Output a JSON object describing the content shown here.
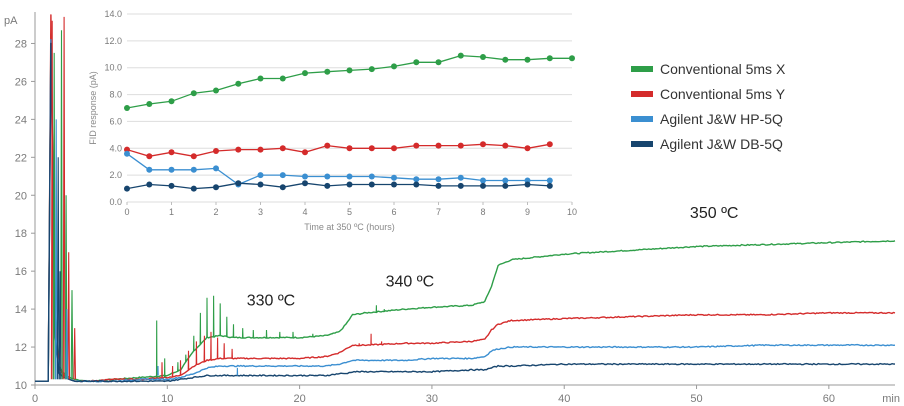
{
  "chart_data": [
    {
      "type": "line",
      "ylabel": "pA",
      "xlabel": "min",
      "xlim": [
        0,
        65
      ],
      "ylim": [
        10,
        29.5
      ],
      "xticks": [
        0,
        10,
        20,
        30,
        40,
        50,
        60
      ],
      "yticks": [
        10,
        12,
        14,
        16,
        18,
        20,
        22,
        24,
        26,
        28
      ],
      "grid": false,
      "legend_position": "top-right",
      "annotations": [
        "330 ºC",
        "340 ºC",
        "350 ºC"
      ],
      "series": [
        {
          "name": "Conventional 5ms X",
          "color": "#2e9e48",
          "x": [
            0,
            1,
            1.2,
            1.5,
            1.8,
            2.2,
            2.6,
            3,
            4,
            6,
            8,
            10,
            11,
            12,
            13,
            14,
            15,
            16,
            18,
            20,
            22,
            23,
            23.5,
            24,
            25,
            28,
            30,
            33,
            34,
            34.5,
            35,
            36,
            40,
            45,
            50,
            55,
            60,
            65
          ],
          "y": [
            10.2,
            10.2,
            28.5,
            14,
            11,
            10.6,
            10.4,
            10.3,
            10.2,
            10.3,
            10.4,
            10.5,
            10.8,
            11.8,
            12.5,
            12.6,
            12.5,
            12.5,
            12.5,
            12.5,
            12.6,
            12.8,
            13.2,
            13.7,
            13.8,
            14,
            14.1,
            14.2,
            14.4,
            15.2,
            16.3,
            16.6,
            16.9,
            17.1,
            17.3,
            17.4,
            17.5,
            17.6
          ]
        },
        {
          "name": "Conventional 5ms Y",
          "color": "#d42b2b",
          "x": [
            0,
            1,
            1.2,
            1.5,
            1.8,
            2.2,
            2.6,
            3,
            4,
            6,
            8,
            10,
            11,
            12,
            13,
            14,
            15,
            16,
            18,
            20,
            22,
            23,
            23.5,
            24,
            25,
            28,
            30,
            33,
            34,
            34.5,
            35,
            36,
            40,
            45,
            50,
            55,
            60,
            65
          ],
          "y": [
            10.2,
            10.2,
            29.5,
            13.5,
            10.9,
            10.5,
            10.3,
            10.2,
            10.2,
            10.3,
            10.3,
            10.4,
            10.5,
            11,
            11.3,
            11.4,
            11.4,
            11.4,
            11.4,
            11.4,
            11.5,
            11.7,
            11.9,
            12.1,
            12.1,
            12.2,
            12.2,
            12.3,
            12.4,
            12.9,
            13.2,
            13.4,
            13.5,
            13.6,
            13.7,
            13.7,
            13.8,
            13.8
          ]
        },
        {
          "name": "Agilent J&W HP-5Q",
          "color": "#3b8fd1",
          "x": [
            0,
            1,
            1.2,
            1.5,
            1.8,
            2.2,
            2.6,
            3,
            4,
            6,
            8,
            10,
            11,
            12,
            13,
            14,
            15,
            16,
            18,
            20,
            22,
            23,
            23.5,
            24,
            25,
            28,
            30,
            33,
            34,
            34.5,
            35,
            36,
            40,
            45,
            50,
            55,
            60,
            65
          ],
          "y": [
            10.2,
            10.2,
            28.2,
            12.8,
            10.7,
            10.4,
            10.3,
            10.2,
            10.2,
            10.2,
            10.3,
            10.3,
            10.4,
            10.6,
            10.9,
            11,
            11,
            11,
            11,
            11,
            11,
            11.1,
            11.2,
            11.3,
            11.3,
            11.3,
            11.4,
            11.4,
            11.5,
            11.8,
            11.9,
            12,
            12,
            12,
            12,
            12.1,
            12.1,
            12.1
          ]
        },
        {
          "name": "Agilent J&W DB-5Q",
          "color": "#17456e",
          "x": [
            0,
            1,
            1.2,
            1.5,
            1.8,
            2.2,
            2.6,
            3,
            4,
            6,
            8,
            10,
            11,
            12,
            13,
            14,
            15,
            16,
            18,
            20,
            22,
            23,
            23.5,
            24,
            25,
            28,
            30,
            33,
            34,
            34.5,
            35,
            36,
            40,
            45,
            50,
            55,
            60,
            65
          ],
          "y": [
            10.2,
            10.2,
            28.0,
            12.5,
            10.6,
            10.4,
            10.3,
            10.2,
            10.2,
            10.2,
            10.2,
            10.2,
            10.3,
            10.4,
            10.5,
            10.5,
            10.5,
            10.5,
            10.5,
            10.5,
            10.5,
            10.6,
            10.6,
            10.7,
            10.7,
            10.7,
            10.7,
            10.8,
            10.8,
            10.9,
            11,
            11,
            11.1,
            11.1,
            11.1,
            11.1,
            11.1,
            11.1
          ]
        }
      ]
    },
    {
      "type": "line",
      "ylabel": "FID response (pA)",
      "xlabel": "Time at 350 ºC (hours)",
      "xlim": [
        0,
        10
      ],
      "ylim": [
        0,
        14
      ],
      "xticks": [
        0,
        1,
        2,
        3,
        4,
        5,
        6,
        7,
        8,
        9,
        10
      ],
      "yticks": [
        "0.0",
        "2.0",
        "4.0",
        "6.0",
        "8.0",
        "10.0",
        "12.0",
        "14.0"
      ],
      "grid": true,
      "x": [
        0,
        0.5,
        1,
        1.5,
        2,
        2.5,
        3,
        3.5,
        4,
        4.5,
        5,
        5.5,
        6,
        6.5,
        7,
        7.5,
        8,
        8.5,
        9,
        9.5,
        10
      ],
      "series": [
        {
          "name": "Conventional 5ms X",
          "color": "#2e9e48",
          "values": [
            7.0,
            7.3,
            7.5,
            8.1,
            8.3,
            8.8,
            9.2,
            9.2,
            9.6,
            9.7,
            9.8,
            9.9,
            10.1,
            10.4,
            10.4,
            10.9,
            10.8,
            10.6,
            10.6,
            10.7,
            10.7
          ]
        },
        {
          "name": "Conventional 5ms Y",
          "color": "#d42b2b",
          "values": [
            3.9,
            3.4,
            3.7,
            3.4,
            3.8,
            3.9,
            3.9,
            4.0,
            3.7,
            4.2,
            4.0,
            4.0,
            4.0,
            4.2,
            4.2,
            4.2,
            4.3,
            4.2,
            4.0,
            4.3,
            null
          ]
        },
        {
          "name": "Agilent J&W HP-5Q",
          "color": "#3b8fd1",
          "values": [
            3.6,
            2.4,
            2.4,
            2.4,
            2.5,
            1.3,
            2.0,
            2.0,
            1.9,
            1.9,
            1.9,
            1.9,
            1.8,
            1.7,
            1.7,
            1.8,
            1.6,
            1.6,
            1.6,
            1.6,
            null
          ]
        },
        {
          "name": "Agilent J&W DB-5Q",
          "color": "#17456e",
          "values": [
            1.0,
            1.3,
            1.2,
            1.0,
            1.1,
            1.4,
            1.3,
            1.1,
            1.4,
            1.2,
            1.3,
            1.3,
            1.3,
            1.3,
            1.2,
            1.2,
            1.2,
            1.2,
            1.3,
            1.2,
            null
          ]
        }
      ]
    }
  ]
}
